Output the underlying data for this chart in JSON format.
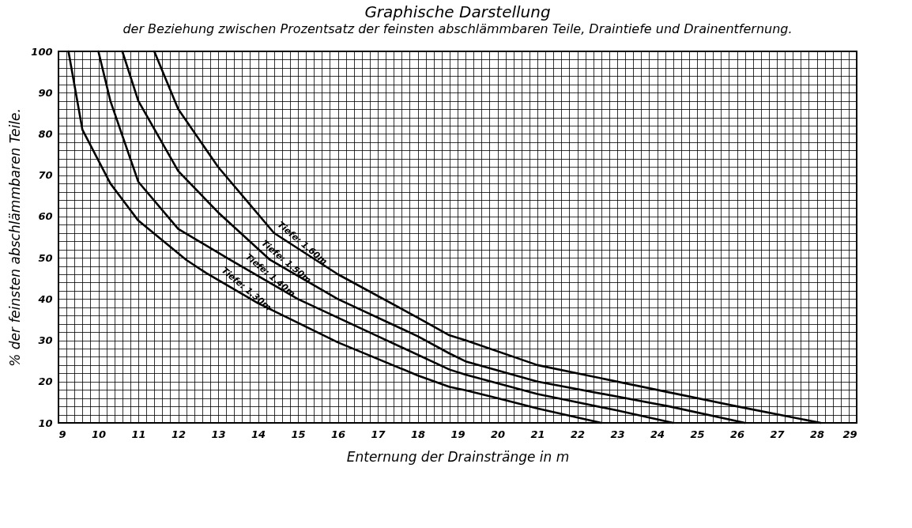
{
  "chart_data": {
    "type": "line",
    "title": "Graphische Darstellung",
    "subtitle": "der Beziehung zwischen Prozentsatz der feinsten abschlämmbaren Teile, Draintiefe und Drainentfernung.",
    "xlabel": "Enternung der Drainstränge in m",
    "ylabel": "% der feinsten abschlämmbaren Teile.",
    "xlim": [
      9,
      29
    ],
    "ylim": [
      10,
      100
    ],
    "grid": true,
    "line_style": "solid",
    "xticks": [
      9,
      {
        "value": 9.2,
        "label": null
      },
      {
        "value": 9.4,
        "label": null
      },
      {
        "value": 9.6,
        "label": null
      },
      {
        "value": 9.8,
        "label": null
      },
      10,
      {
        "value": 10.2,
        "label": null
      },
      {
        "value": 10.4,
        "label": null
      },
      {
        "value": 10.6,
        "label": null
      },
      {
        "value": 10.8,
        "label": null
      },
      11,
      {
        "value": 11.2,
        "label": null
      },
      {
        "value": 11.4,
        "label": null
      },
      {
        "value": 11.6,
        "label": null
      },
      {
        "value": 11.8,
        "label": null
      },
      12,
      {
        "value": 12.2,
        "label": null
      },
      {
        "value": 12.4,
        "label": null
      },
      {
        "value": 12.6,
        "label": null
      },
      {
        "value": 12.8,
        "label": null
      },
      13,
      {
        "value": 13.2,
        "label": null
      },
      {
        "value": 13.4,
        "label": null
      },
      {
        "value": 13.6,
        "label": null
      },
      {
        "value": 13.8,
        "label": null
      },
      14,
      {
        "value": 14.2,
        "label": null
      },
      {
        "value": 14.4,
        "label": null
      },
      {
        "value": 14.6,
        "label": null
      },
      {
        "value": 14.8,
        "label": null
      },
      15,
      {
        "value": 15.2,
        "label": null
      },
      {
        "value": 15.4,
        "label": null
      },
      {
        "value": 15.6,
        "label": null
      },
      {
        "value": 15.8,
        "label": null
      },
      16,
      {
        "value": 16.2,
        "label": null
      },
      {
        "value": 16.4,
        "label": null
      },
      {
        "value": 16.6,
        "label": null
      },
      {
        "value": 16.8,
        "label": null
      },
      17,
      {
        "value": 17.2,
        "label": null
      },
      {
        "value": 17.4,
        "label": null
      },
      {
        "value": 17.6,
        "label": null
      },
      {
        "value": 17.8,
        "label": null
      },
      18,
      {
        "value": 18.2,
        "label": null
      },
      {
        "value": 18.4,
        "label": null
      },
      {
        "value": 18.6,
        "label": null
      },
      {
        "value": 18.8,
        "label": null
      },
      19,
      {
        "value": 19.2,
        "label": null
      },
      {
        "value": 19.4,
        "label": null
      },
      {
        "value": 19.6,
        "label": null
      },
      {
        "value": 19.8,
        "label": null
      },
      20,
      {
        "value": 20.2,
        "label": null
      },
      {
        "value": 20.4,
        "label": null
      },
      {
        "value": 20.6,
        "label": null
      },
      {
        "value": 20.8,
        "label": null
      },
      21,
      {
        "value": 21.2,
        "label": null
      },
      {
        "value": 21.4,
        "label": null
      },
      {
        "value": 21.6,
        "label": null
      },
      {
        "value": 21.8,
        "label": null
      },
      22,
      {
        "value": 22.2,
        "label": null
      },
      {
        "value": 22.4,
        "label": null
      },
      {
        "value": 22.6,
        "label": null
      },
      {
        "value": 22.8,
        "label": null
      },
      23,
      {
        "value": 23.2,
        "label": null
      },
      {
        "value": 23.4,
        "label": null
      },
      {
        "value": 23.6,
        "label": null
      },
      {
        "value": 23.8,
        "label": null
      },
      24,
      {
        "value": 24.2,
        "label": null
      },
      {
        "value": 24.4,
        "label": null
      },
      {
        "value": 24.6,
        "label": null
      },
      {
        "value": 24.8,
        "label": null
      },
      25,
      {
        "value": 25.2,
        "label": null
      },
      {
        "value": 25.4,
        "label": null
      },
      {
        "value": 25.6,
        "label": null
      },
      {
        "value": 25.8,
        "label": null
      },
      26,
      {
        "value": 26.2,
        "label": null
      },
      {
        "value": 26.4,
        "label": null
      },
      {
        "value": 26.6,
        "label": null
      },
      {
        "value": 26.8,
        "label": null
      },
      27,
      {
        "value": 27.2,
        "label": null
      },
      {
        "value": 27.4,
        "label": null
      },
      {
        "value": 27.6,
        "label": null
      },
      {
        "value": 27.8,
        "label": null
      },
      28,
      {
        "value": 28.2,
        "label": null
      },
      {
        "value": 28.4,
        "label": null
      },
      {
        "value": 28.6,
        "label": null
      },
      {
        "value": 28.8,
        "label": null
      },
      29
    ],
    "yticks": [
      10,
      {
        "value": 12,
        "label": null
      },
      {
        "value": 14,
        "label": null
      },
      {
        "value": 16,
        "label": null
      },
      {
        "value": 18,
        "label": null
      },
      20,
      {
        "value": 22,
        "label": null
      },
      {
        "value": 24,
        "label": null
      },
      {
        "value": 26,
        "label": null
      },
      {
        "value": 28,
        "label": null
      },
      30,
      {
        "value": 32,
        "label": null
      },
      {
        "value": 34,
        "label": null
      },
      {
        "value": 36,
        "label": null
      },
      {
        "value": 38,
        "label": null
      },
      40,
      {
        "value": 42,
        "label": null
      },
      {
        "value": 44,
        "label": null
      },
      {
        "value": 46,
        "label": null
      },
      {
        "value": 48,
        "label": null
      },
      50,
      {
        "value": 52,
        "label": null
      },
      {
        "value": 54,
        "label": null
      },
      {
        "value": 56,
        "label": null
      },
      {
        "value": 58,
        "label": null
      },
      60,
      {
        "value": 62,
        "label": null
      },
      {
        "value": 64,
        "label": null
      },
      {
        "value": 66,
        "label": null
      },
      {
        "value": 68,
        "label": null
      },
      70,
      {
        "value": 72,
        "label": null
      },
      {
        "value": 74,
        "label": null
      },
      {
        "value": 76,
        "label": null
      },
      {
        "value": 78,
        "label": null
      },
      80,
      {
        "value": 82,
        "label": null
      },
      {
        "value": 84,
        "label": null
      },
      {
        "value": 86,
        "label": null
      },
      {
        "value": 88,
        "label": null
      },
      90,
      {
        "value": 92,
        "label": null
      },
      {
        "value": 94,
        "label": null
      },
      {
        "value": 96,
        "label": null
      },
      {
        "value": 98,
        "label": null
      },
      100
    ],
    "series": [
      {
        "color": "#000000",
        "x": [
          9.25,
          9.6,
          10.3,
          11,
          12.2,
          12.7,
          14,
          16,
          18,
          18.8,
          19.2,
          20,
          21,
          22.6
        ],
        "values": [
          100,
          81,
          68,
          59,
          49.5,
          46.3,
          39,
          29.5,
          21.5,
          18.7,
          17.9,
          16,
          13.5,
          10
        ]
      },
      {
        "color": "#000000",
        "x": [
          10,
          10.3,
          11,
          12,
          13.3,
          15,
          17,
          18.8,
          19.2,
          21,
          23,
          24.4
        ],
        "values": [
          100,
          88,
          68.4,
          57,
          49.5,
          40,
          31,
          22.9,
          21.7,
          17,
          13,
          10
        ]
      },
      {
        "color": "#000000",
        "x": [
          10.6,
          11,
          12,
          13,
          14.3,
          16,
          18,
          18.8,
          19.2,
          21,
          24.3,
          26.2
        ],
        "values": [
          100,
          88,
          71,
          61,
          49.5,
          40,
          31,
          26.8,
          24.9,
          20,
          14,
          10
        ]
      },
      {
        "color": "#000000",
        "x": [
          11.4,
          12,
          13,
          14.4,
          16,
          18,
          18.8,
          19.2,
          21,
          24.3,
          26,
          28.1
        ],
        "values": [
          100,
          86,
          72,
          56,
          46,
          35.5,
          31.2,
          30,
          24,
          17.4,
          14,
          10
        ]
      }
    ],
    "annotations": [
      {
        "text": "Tiefe: 1.60m",
        "x": 15.0,
        "y": 52.3
      },
      {
        "text": "Tiefe: 1.50m",
        "x": 14.6,
        "y": 47.8
      },
      {
        "text": "Tiefe: 1.40m",
        "x": 14.2,
        "y": 44.5
      },
      {
        "text": "Tiefe: 1.30m",
        "x": 13.6,
        "y": 41.2
      }
    ]
  }
}
